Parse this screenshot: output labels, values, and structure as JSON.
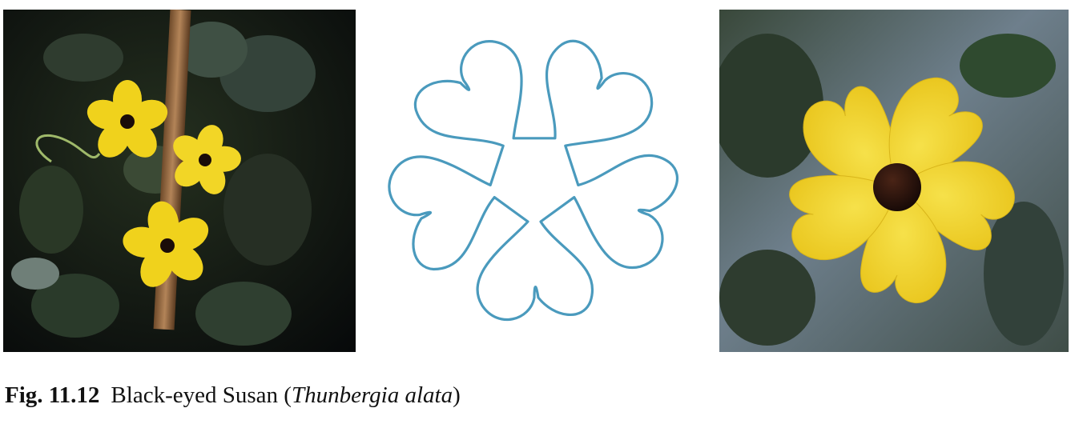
{
  "figure": {
    "label": "Fig. 11.12",
    "caption_common_name": "Black-eyed Susan",
    "caption_open_paren": "(",
    "caption_scientific_name": "Thunbergia alata",
    "caption_close_paren": ")"
  },
  "colors": {
    "outline_curve": "#4a9abd",
    "petal_yellow": "#f2d72a",
    "flower_center": "#1e0d0a",
    "leaf_dark": "#2c3a2c",
    "background_photo_left": "#0c0f0c",
    "background_photo_right": "#5e7080"
  },
  "panels": [
    {
      "name": "photo-left",
      "content": "flowering vine photograph"
    },
    {
      "name": "flower-outline-diagram",
      "content": "five-petal outline curve"
    },
    {
      "name": "photo-right",
      "content": "single flower close-up photograph"
    }
  ]
}
